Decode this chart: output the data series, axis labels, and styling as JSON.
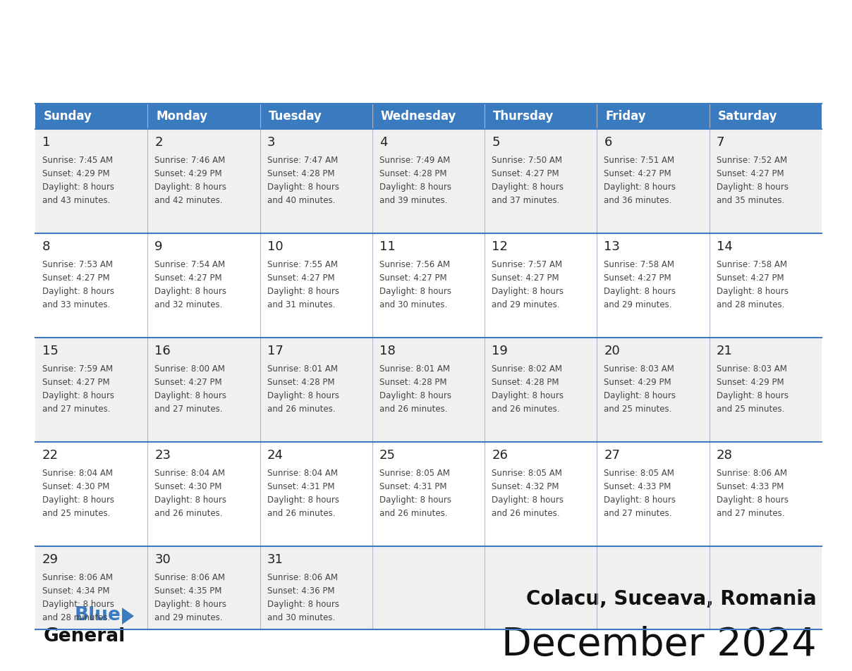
{
  "title": "December 2024",
  "subtitle": "Colacu, Suceava, Romania",
  "header_bg": "#3a7abf",
  "header_text": "#ffffff",
  "row_bg_odd": "#f0f0f0",
  "row_bg_even": "#ffffff",
  "border_color": "#3a7abf",
  "grid_line_color": "#b0b8c8",
  "text_color": "#222222",
  "day_headers": [
    "Sunday",
    "Monday",
    "Tuesday",
    "Wednesday",
    "Thursday",
    "Friday",
    "Saturday"
  ],
  "calendar_data": [
    [
      {
        "day": "1",
        "sunrise": "7:45 AM",
        "sunset": "4:29 PM",
        "dl_suffix": "43 minutes."
      },
      {
        "day": "2",
        "sunrise": "7:46 AM",
        "sunset": "4:29 PM",
        "dl_suffix": "42 minutes."
      },
      {
        "day": "3",
        "sunrise": "7:47 AM",
        "sunset": "4:28 PM",
        "dl_suffix": "40 minutes."
      },
      {
        "day": "4",
        "sunrise": "7:49 AM",
        "sunset": "4:28 PM",
        "dl_suffix": "39 minutes."
      },
      {
        "day": "5",
        "sunrise": "7:50 AM",
        "sunset": "4:27 PM",
        "dl_suffix": "37 minutes."
      },
      {
        "day": "6",
        "sunrise": "7:51 AM",
        "sunset": "4:27 PM",
        "dl_suffix": "36 minutes."
      },
      {
        "day": "7",
        "sunrise": "7:52 AM",
        "sunset": "4:27 PM",
        "dl_suffix": "35 minutes."
      }
    ],
    [
      {
        "day": "8",
        "sunrise": "7:53 AM",
        "sunset": "4:27 PM",
        "dl_suffix": "33 minutes."
      },
      {
        "day": "9",
        "sunrise": "7:54 AM",
        "sunset": "4:27 PM",
        "dl_suffix": "32 minutes."
      },
      {
        "day": "10",
        "sunrise": "7:55 AM",
        "sunset": "4:27 PM",
        "dl_suffix": "31 minutes."
      },
      {
        "day": "11",
        "sunrise": "7:56 AM",
        "sunset": "4:27 PM",
        "dl_suffix": "30 minutes."
      },
      {
        "day": "12",
        "sunrise": "7:57 AM",
        "sunset": "4:27 PM",
        "dl_suffix": "29 minutes."
      },
      {
        "day": "13",
        "sunrise": "7:58 AM",
        "sunset": "4:27 PM",
        "dl_suffix": "29 minutes."
      },
      {
        "day": "14",
        "sunrise": "7:58 AM",
        "sunset": "4:27 PM",
        "dl_suffix": "28 minutes."
      }
    ],
    [
      {
        "day": "15",
        "sunrise": "7:59 AM",
        "sunset": "4:27 PM",
        "dl_suffix": "27 minutes."
      },
      {
        "day": "16",
        "sunrise": "8:00 AM",
        "sunset": "4:27 PM",
        "dl_suffix": "27 minutes."
      },
      {
        "day": "17",
        "sunrise": "8:01 AM",
        "sunset": "4:28 PM",
        "dl_suffix": "26 minutes."
      },
      {
        "day": "18",
        "sunrise": "8:01 AM",
        "sunset": "4:28 PM",
        "dl_suffix": "26 minutes."
      },
      {
        "day": "19",
        "sunrise": "8:02 AM",
        "sunset": "4:28 PM",
        "dl_suffix": "26 minutes."
      },
      {
        "day": "20",
        "sunrise": "8:03 AM",
        "sunset": "4:29 PM",
        "dl_suffix": "25 minutes."
      },
      {
        "day": "21",
        "sunrise": "8:03 AM",
        "sunset": "4:29 PM",
        "dl_suffix": "25 minutes."
      }
    ],
    [
      {
        "day": "22",
        "sunrise": "8:04 AM",
        "sunset": "4:30 PM",
        "dl_suffix": "25 minutes."
      },
      {
        "day": "23",
        "sunrise": "8:04 AM",
        "sunset": "4:30 PM",
        "dl_suffix": "26 minutes."
      },
      {
        "day": "24",
        "sunrise": "8:04 AM",
        "sunset": "4:31 PM",
        "dl_suffix": "26 minutes."
      },
      {
        "day": "25",
        "sunrise": "8:05 AM",
        "sunset": "4:31 PM",
        "dl_suffix": "26 minutes."
      },
      {
        "day": "26",
        "sunrise": "8:05 AM",
        "sunset": "4:32 PM",
        "dl_suffix": "26 minutes."
      },
      {
        "day": "27",
        "sunrise": "8:05 AM",
        "sunset": "4:33 PM",
        "dl_suffix": "27 minutes."
      },
      {
        "day": "28",
        "sunrise": "8:06 AM",
        "sunset": "4:33 PM",
        "dl_suffix": "27 minutes."
      }
    ],
    [
      {
        "day": "29",
        "sunrise": "8:06 AM",
        "sunset": "4:34 PM",
        "dl_suffix": "28 minutes."
      },
      {
        "day": "30",
        "sunrise": "8:06 AM",
        "sunset": "4:35 PM",
        "dl_suffix": "29 minutes."
      },
      {
        "day": "31",
        "sunrise": "8:06 AM",
        "sunset": "4:36 PM",
        "dl_suffix": "30 minutes."
      },
      null,
      null,
      null,
      null
    ]
  ]
}
